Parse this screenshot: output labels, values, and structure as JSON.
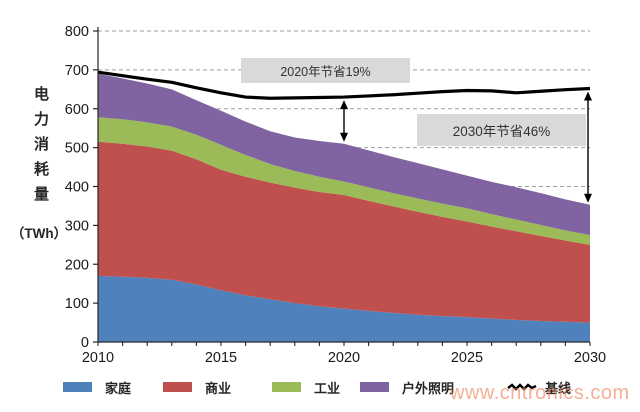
{
  "page": {
    "watermark": "www.cntronics.com",
    "watermark_color": "#ed7e54",
    "background": "#ffffff"
  },
  "chart_data": {
    "type": "area",
    "stacked": true,
    "title": "",
    "ylabel": "电力消耗量",
    "ylabel_unit": "（TWh）",
    "xlabel": "",
    "ylim": [
      0,
      800
    ],
    "y_ticks": [
      0,
      100,
      200,
      300,
      400,
      500,
      600,
      700,
      800
    ],
    "x_range": [
      2010,
      2030
    ],
    "years": [
      2010,
      2011,
      2012,
      2013,
      2014,
      2015,
      2016,
      2017,
      2018,
      2019,
      2020,
      2021,
      2022,
      2023,
      2024,
      2025,
      2026,
      2027,
      2028,
      2029,
      2030
    ],
    "x_tick_labels": [
      "2010",
      "2015",
      "2020",
      "2025",
      "2030"
    ],
    "x_tick_years": [
      2010,
      2015,
      2020,
      2025,
      2030
    ],
    "grid": "horizontal-dashed",
    "grid_color": "#9e9e9e",
    "axis_color": "#262626",
    "legend_position": "bottom",
    "series": [
      {
        "name": "家庭",
        "type": "area",
        "color": "#4F81BD",
        "values": [
          170,
          168,
          165,
          160,
          148,
          133,
          120,
          110,
          100,
          92,
          86,
          80,
          75,
          70,
          67,
          64,
          60,
          57,
          54,
          52,
          50
        ]
      },
      {
        "name": "商业",
        "type": "area",
        "color": "#C0504D",
        "values": [
          345,
          342,
          338,
          332,
          322,
          310,
          305,
          300,
          297,
          294,
          292,
          283,
          274,
          265,
          255,
          246,
          237,
          228,
          219,
          209,
          200
        ]
      },
      {
        "name": "工业",
        "type": "area",
        "color": "#9BBB59",
        "values": [
          63,
          63,
          62,
          62,
          63,
          64,
          56,
          48,
          43,
          39,
          35,
          35,
          34,
          34,
          34,
          34,
          32,
          30,
          28,
          26,
          25
        ]
      },
      {
        "name": "户外照明",
        "type": "area",
        "color": "#8064A2",
        "values": [
          112,
          105,
          100,
          96,
          89,
          88,
          86,
          84,
          86,
          92,
          97,
          95,
          93,
          91,
          88,
          84,
          83,
          83,
          82,
          80,
          78
        ]
      },
      {
        "name": "基线",
        "type": "line",
        "color": "#000000",
        "values": [
          694,
          685,
          676,
          668,
          654,
          641,
          630,
          627,
          628,
          629,
          630,
          633,
          636,
          640,
          644,
          647,
          646,
          641,
          645,
          649,
          652
        ]
      }
    ],
    "annotations": [
      {
        "label": "2020年节省19%",
        "year": 2020,
        "value_from": 630,
        "value_to": 510
      },
      {
        "label": "2030年节省46%",
        "year": 2030,
        "value_from": 652,
        "value_to": 353
      }
    ]
  }
}
